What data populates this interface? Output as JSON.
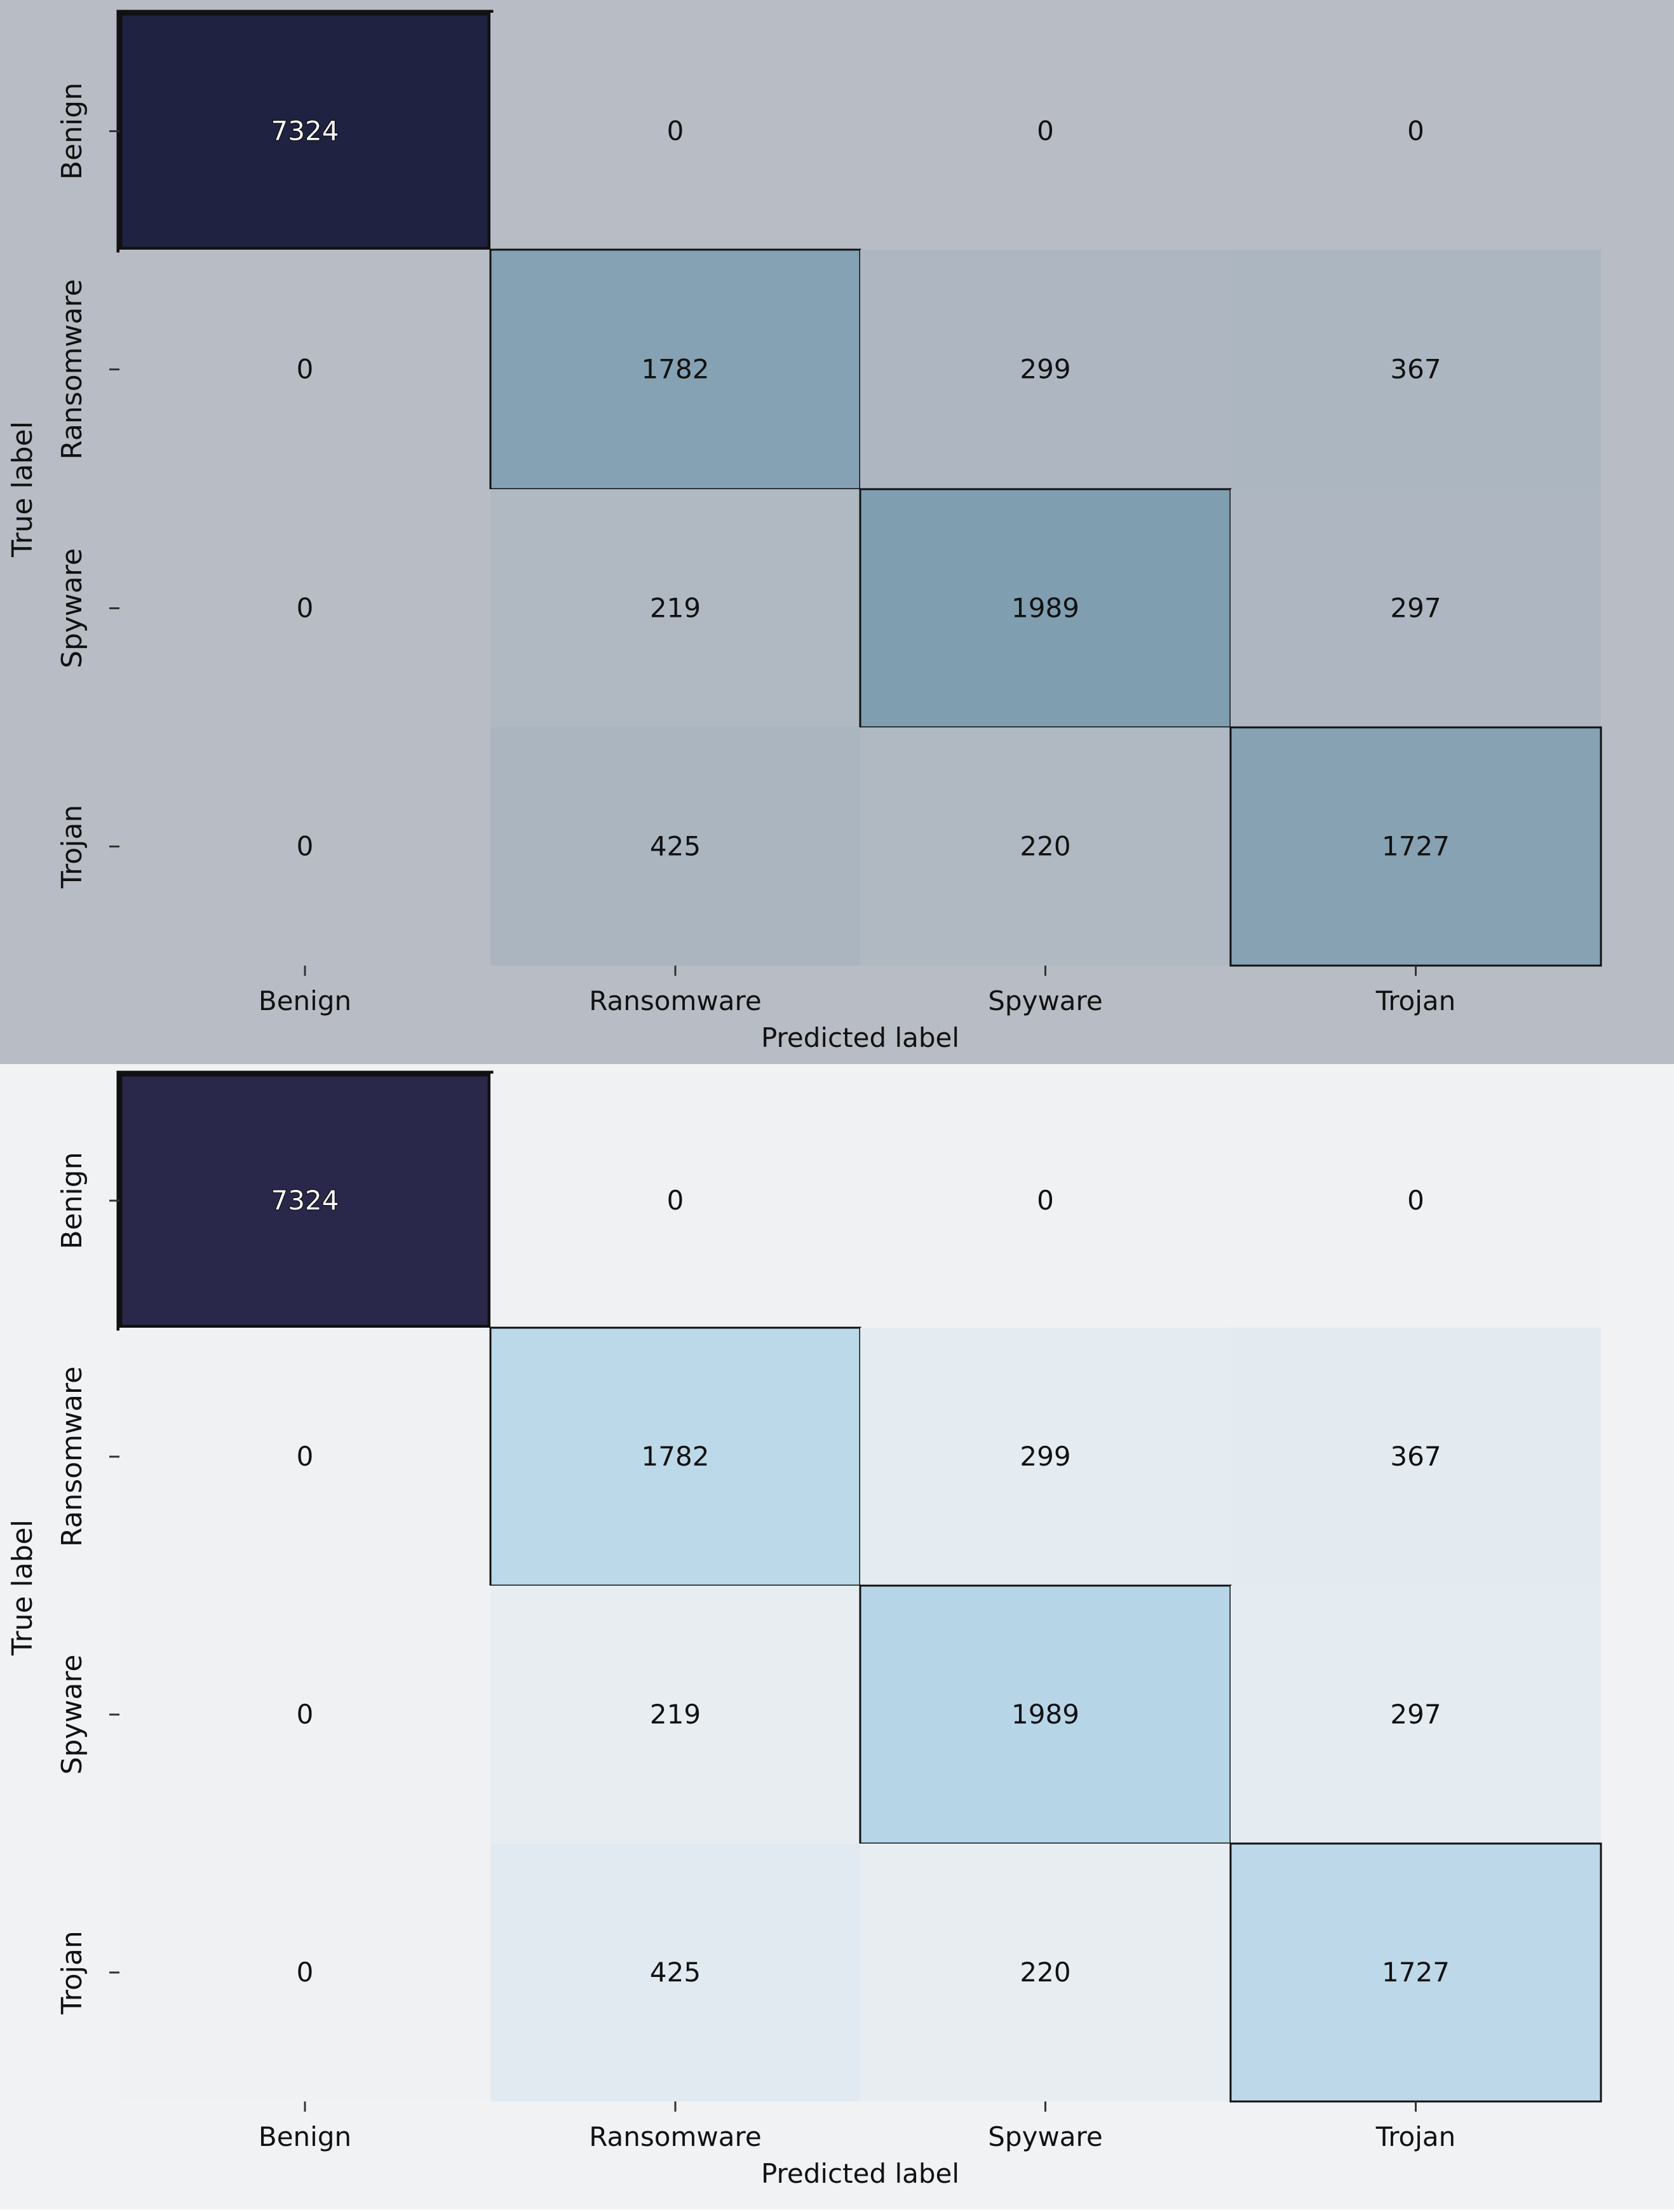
{
  "chart_data": [
    {
      "type": "heatmap",
      "categories": [
        "Benign",
        "Ransomware",
        "Spyware",
        "Trojan"
      ],
      "rows": [
        "Benign",
        "Ransomware",
        "Spyware",
        "Trojan"
      ],
      "values": [
        [
          7324,
          0,
          0,
          0
        ],
        [
          0,
          1782,
          299,
          367
        ],
        [
          0,
          219,
          1989,
          297
        ],
        [
          0,
          425,
          220,
          1727
        ]
      ],
      "xlabel": "Predicted label",
      "ylabel": "True label",
      "grid": false,
      "colors": {
        "background": "#b8bcc4",
        "base": "#b8bcc4",
        "diagonal_mid": "#7f9fb1",
        "max": "#1f2240"
      }
    },
    {
      "type": "heatmap",
      "categories": [
        "Benign",
        "Ransomware",
        "Spyware",
        "Trojan"
      ],
      "rows": [
        "Benign",
        "Ransomware",
        "Spyware",
        "Trojan"
      ],
      "values": [
        [
          7324,
          0,
          0,
          0
        ],
        [
          0,
          1782,
          299,
          367
        ],
        [
          0,
          219,
          1989,
          297
        ],
        [
          0,
          425,
          220,
          1727
        ]
      ],
      "xlabel": "Predicted label",
      "ylabel": "True label",
      "grid": false,
      "colors": {
        "background": "#f0f2f4",
        "base": "#eff1f3",
        "diagonal_mid": "#b6d6e8",
        "max": "#29284a"
      }
    }
  ]
}
